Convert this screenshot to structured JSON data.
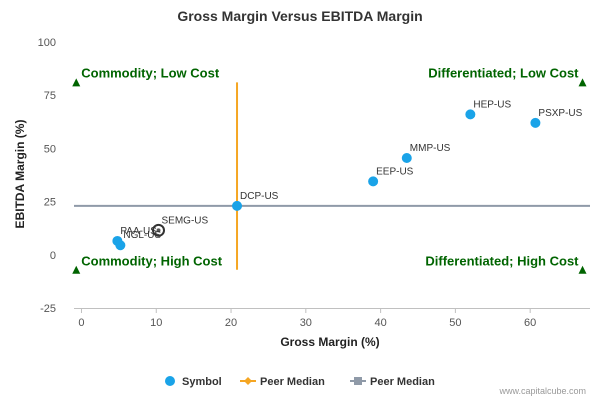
{
  "chart_data": {
    "type": "scatter",
    "title": "Gross Margin Versus EBITDA Margin",
    "xlabel": "Gross Margin (%)",
    "ylabel": "EBITDA Margin (%)",
    "xlim": [
      -1,
      68
    ],
    "ylim": [
      -25,
      100
    ],
    "xticks": [
      0,
      10,
      20,
      30,
      40,
      50,
      60
    ],
    "yticks": [
      -25,
      0,
      25,
      50,
      75,
      100
    ],
    "grid": false,
    "legend_position": "bottom",
    "colors": {
      "symbol": "#1aa3e8",
      "highlight": "#555555",
      "peer_median_x": "#f5a623",
      "peer_median_y": "#8f9aa8",
      "quadrant": "#006400",
      "quadrant_marker": "#006400"
    },
    "points": [
      {
        "label": "HEP-US",
        "x": 52,
        "y": 66
      },
      {
        "label": "PSXP-US",
        "x": 60.7,
        "y": 62
      },
      {
        "label": "MMP-US",
        "x": 43.5,
        "y": 45.5
      },
      {
        "label": "EEP-US",
        "x": 39,
        "y": 34.5
      },
      {
        "label": "DCP-US",
        "x": 20.8,
        "y": 23
      },
      {
        "label": "SEMG-US",
        "x": 10.3,
        "y": 11.5,
        "highlight": true
      },
      {
        "label": "PAA-US",
        "x": 4.8,
        "y": 6.5
      },
      {
        "label": "NGL-US",
        "x": 5.2,
        "y": 4.5
      }
    ],
    "series": [
      {
        "name": "Symbol",
        "kind": "scatter"
      },
      {
        "name": "Peer Median",
        "kind": "vline",
        "x": 20.8,
        "y_range": [
          -7,
          81
        ]
      },
      {
        "name": "Peer Median",
        "kind": "hline",
        "y": 23,
        "x_range": [
          -1,
          68
        ]
      }
    ],
    "quadrants": [
      {
        "label": "Commodity; Low Cost",
        "position": "top-left",
        "marker_x": -0.7,
        "marker_y": 81
      },
      {
        "label": "Differentiated; Low Cost",
        "position": "top-right",
        "marker_x": 67,
        "marker_y": 81
      },
      {
        "label": "Commodity; High Cost",
        "position": "bottom-left",
        "marker_x": -0.7,
        "marker_y": -7
      },
      {
        "label": "Differentiated; High Cost",
        "position": "bottom-right",
        "marker_x": 67,
        "marker_y": -7
      }
    ]
  },
  "credit": "www.capitalcube.com"
}
